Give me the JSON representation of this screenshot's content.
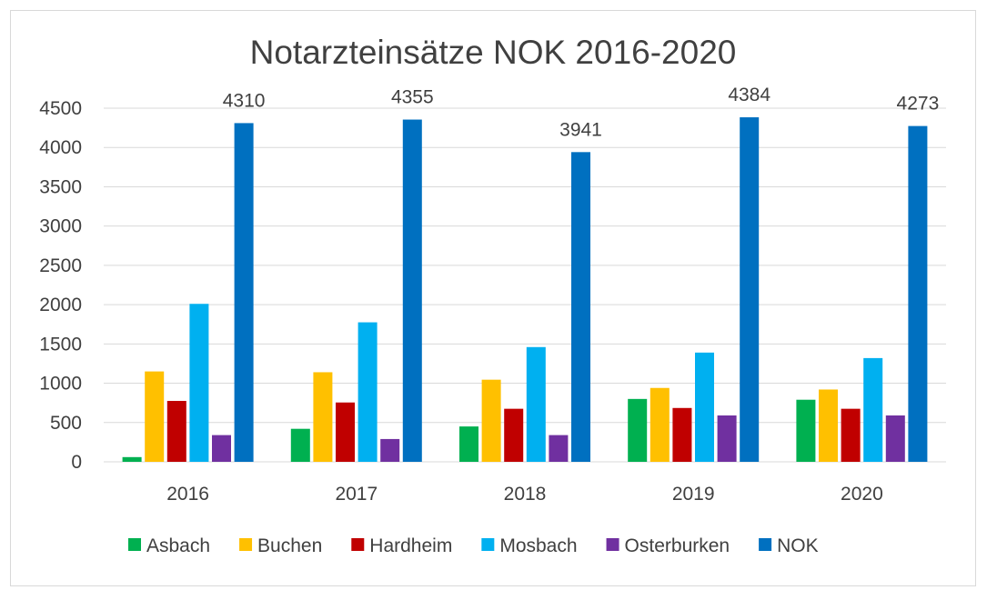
{
  "chart_data": {
    "type": "bar",
    "title": "Notarzteinsätze NOK 2016-2020",
    "xlabel": "",
    "ylabel": "",
    "ylim": [
      0,
      4500
    ],
    "y_ticks": [
      "0",
      "500",
      "1000",
      "1500",
      "2000",
      "2500",
      "3000",
      "3500",
      "4000",
      "4500"
    ],
    "grid": true,
    "legend_position": "bottom",
    "categories": [
      "2016",
      "2017",
      "2018",
      "2019",
      "2020"
    ],
    "series": [
      {
        "name": "Asbach",
        "color": "#00b050",
        "values": [
          60,
          420,
          450,
          800,
          790
        ]
      },
      {
        "name": "Buchen",
        "color": "#ffc000",
        "values": [
          1150,
          1140,
          1045,
          940,
          920
        ]
      },
      {
        "name": "Hardheim",
        "color": "#c00000",
        "values": [
          775,
          755,
          675,
          685,
          675
        ]
      },
      {
        "name": "Mosbach",
        "color": "#00b0f0",
        "values": [
          2010,
          1775,
          1460,
          1390,
          1320
        ]
      },
      {
        "name": "Osterburken",
        "color": "#7030a0",
        "values": [
          340,
          290,
          340,
          590,
          590
        ]
      },
      {
        "name": "NOK",
        "color": "#0070c0",
        "values": [
          4310,
          4355,
          3941,
          4384,
          4273
        ],
        "data_labels": [
          "4310",
          "4355",
          "3941",
          "4384",
          "4273"
        ]
      }
    ]
  }
}
